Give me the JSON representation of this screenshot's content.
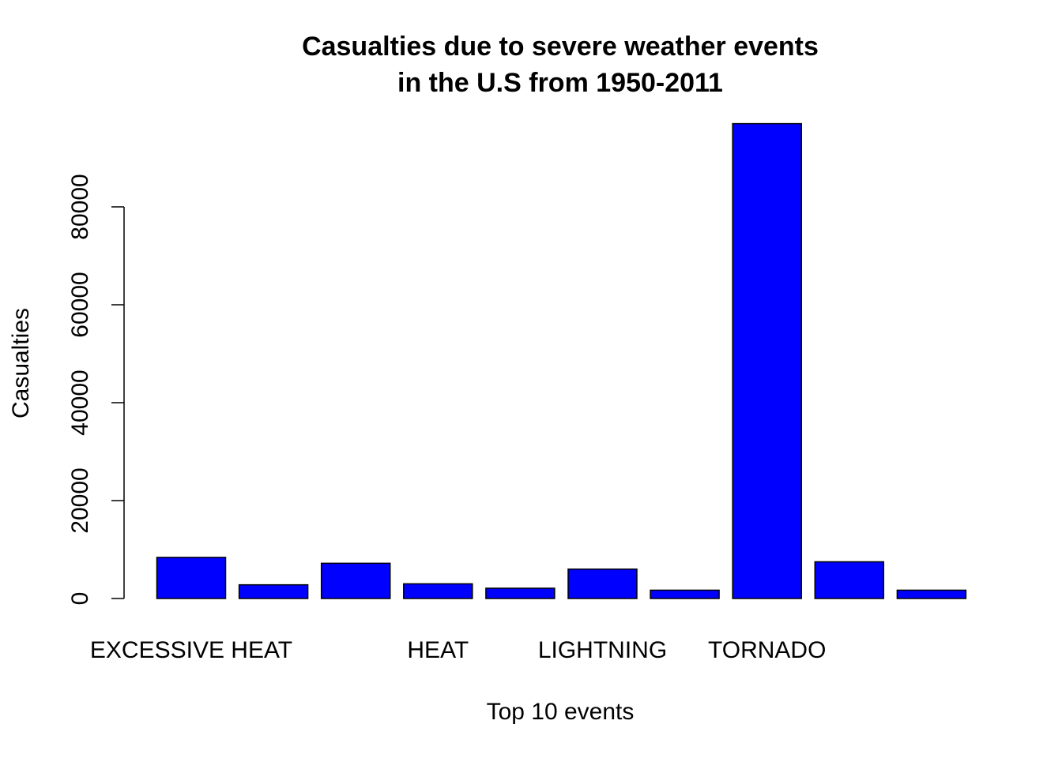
{
  "chart_data": {
    "type": "bar",
    "title_line1": "Casualties due to severe weather events",
    "title_line2": "in the U.S from 1950-2011",
    "xlabel": "Top 10 events",
    "ylabel": "Casualties",
    "ylim": [
      0,
      97000
    ],
    "y_ticks": [
      0,
      20000,
      40000,
      60000,
      80000
    ],
    "y_tick_labels": [
      "0",
      "20000",
      "40000",
      "60000",
      "80000"
    ],
    "categories": [
      "EXCESSIVE HEAT",
      "",
      "",
      "HEAT",
      "",
      "LIGHTNING",
      "",
      "TORNADO",
      "",
      ""
    ],
    "values": [
      8400,
      2800,
      7200,
      3000,
      2100,
      6000,
      1700,
      97000,
      7500,
      1700
    ],
    "bar_color": "#0000ff",
    "grid": false
  }
}
